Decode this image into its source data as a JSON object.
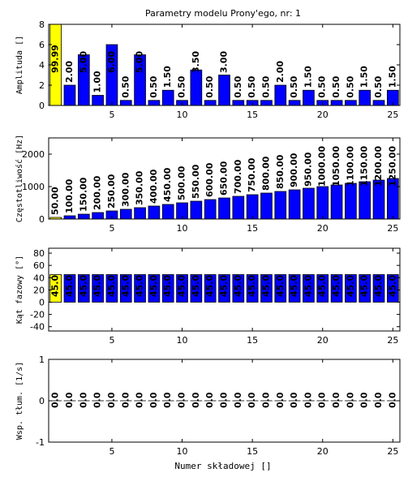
{
  "chart_data": [
    {
      "type": "bar",
      "title": "Parametry modelu Prony'ego, nr: 1",
      "ylabel": "Amplituda []",
      "categories": [
        1,
        2,
        3,
        4,
        5,
        6,
        7,
        8,
        9,
        10,
        11,
        12,
        13,
        14,
        15,
        16,
        17,
        18,
        19,
        20,
        21,
        22,
        23,
        24,
        25
      ],
      "values": [
        99.99,
        2,
        5,
        1,
        6,
        0.5,
        5,
        0.5,
        1.5,
        0.5,
        3.5,
        0.5,
        3,
        0.5,
        0.5,
        0.5,
        2,
        0.5,
        1.5,
        0.5,
        0.5,
        0.5,
        1.5,
        0.5,
        1.5
      ],
      "value_labels": [
        "99.99",
        "2.00",
        "5.00",
        "1.00",
        "6.00",
        "0.50",
        "5.00",
        "0.50",
        "1.50",
        "0.50",
        "3.50",
        "0.50",
        "3.00",
        "0.50",
        "0.50",
        "0.50",
        "2.00",
        "0.50",
        "1.50",
        "0.50",
        "0.50",
        "0.50",
        "1.50",
        "0.50",
        "1.50"
      ],
      "colors": [
        "#ffff00",
        "#0000ff",
        "#0000ff",
        "#0000ff",
        "#0000ff",
        "#0000ff",
        "#0000ff",
        "#0000ff",
        "#0000ff",
        "#0000ff",
        "#0000ff",
        "#0000ff",
        "#0000ff",
        "#0000ff",
        "#0000ff",
        "#0000ff",
        "#0000ff",
        "#0000ff",
        "#0000ff",
        "#0000ff",
        "#0000ff",
        "#0000ff",
        "#0000ff",
        "#0000ff",
        "#0000ff"
      ],
      "xlim": [
        0.5,
        25.5
      ],
      "xticks": [
        5,
        10,
        15,
        20,
        25
      ],
      "ylim": [
        0,
        8
      ],
      "yticks": [
        0,
        2,
        4,
        6,
        8
      ]
    },
    {
      "type": "bar",
      "ylabel": "Częstotliwość [Hz]",
      "categories": [
        1,
        2,
        3,
        4,
        5,
        6,
        7,
        8,
        9,
        10,
        11,
        12,
        13,
        14,
        15,
        16,
        17,
        18,
        19,
        20,
        21,
        22,
        23,
        24,
        25
      ],
      "values": [
        50,
        100,
        150,
        200,
        250,
        300,
        350,
        400,
        450,
        500,
        550,
        600,
        650,
        700,
        750,
        800,
        850,
        900,
        950,
        1000,
        1050,
        1100,
        1150,
        1200,
        1250
      ],
      "value_labels": [
        "50.00",
        "100.00",
        "150.00",
        "200.00",
        "250.00",
        "300.00",
        "350.00",
        "400.00",
        "450.00",
        "500.00",
        "550.00",
        "600.00",
        "650.00",
        "700.00",
        "750.00",
        "800.00",
        "850.00",
        "900.00",
        "950.00",
        "1000.00",
        "1050.00",
        "1100.00",
        "1150.00",
        "1200.00",
        "1250.00"
      ],
      "colors": [
        "#ffff00",
        "#0000ff",
        "#0000ff",
        "#0000ff",
        "#0000ff",
        "#0000ff",
        "#0000ff",
        "#0000ff",
        "#0000ff",
        "#0000ff",
        "#0000ff",
        "#0000ff",
        "#0000ff",
        "#0000ff",
        "#0000ff",
        "#0000ff",
        "#0000ff",
        "#0000ff",
        "#0000ff",
        "#0000ff",
        "#0000ff",
        "#0000ff",
        "#0000ff",
        "#0000ff",
        "#0000ff"
      ],
      "xlim": [
        0.5,
        25.5
      ],
      "xticks": [
        5,
        10,
        15,
        20,
        25
      ],
      "ylim": [
        0,
        2500
      ],
      "yticks": [
        0,
        1000,
        2000
      ]
    },
    {
      "type": "bar",
      "ylabel": "Kąt fazowy [°]",
      "categories": [
        1,
        2,
        3,
        4,
        5,
        6,
        7,
        8,
        9,
        10,
        11,
        12,
        13,
        14,
        15,
        16,
        17,
        18,
        19,
        20,
        21,
        22,
        23,
        24,
        25
      ],
      "values": [
        45,
        45,
        45,
        45,
        45,
        45,
        45,
        45,
        45,
        45,
        45,
        45,
        45,
        45,
        45,
        45,
        45,
        45,
        45,
        45,
        45,
        45,
        45,
        45,
        45
      ],
      "value_labels": [
        "45.0",
        "45.0",
        "45.0",
        "45.0",
        "45.0",
        "45.0",
        "45.0",
        "45.0",
        "45.0",
        "45.0",
        "45.0",
        "45.0",
        "45.0",
        "45.0",
        "45.0",
        "45.0",
        "45.0",
        "45.0",
        "45.0",
        "45.0",
        "45.0",
        "45.0",
        "45.0",
        "45.0",
        "45.0"
      ],
      "colors": [
        "#ffff00",
        "#0000ff",
        "#0000ff",
        "#0000ff",
        "#0000ff",
        "#0000ff",
        "#0000ff",
        "#0000ff",
        "#0000ff",
        "#0000ff",
        "#0000ff",
        "#0000ff",
        "#0000ff",
        "#0000ff",
        "#0000ff",
        "#0000ff",
        "#0000ff",
        "#0000ff",
        "#0000ff",
        "#0000ff",
        "#0000ff",
        "#0000ff",
        "#0000ff",
        "#0000ff",
        "#0000ff"
      ],
      "xlim": [
        0.5,
        25.5
      ],
      "xticks": [
        5,
        10,
        15,
        20,
        25
      ],
      "ylim": [
        -47,
        88
      ],
      "yticks": [
        -40,
        -20,
        0,
        20,
        40,
        60,
        80
      ]
    },
    {
      "type": "bar",
      "ylabel": "Wsp. tłum. [1/s]",
      "xlabel": "Numer składowej []",
      "categories": [
        1,
        2,
        3,
        4,
        5,
        6,
        7,
        8,
        9,
        10,
        11,
        12,
        13,
        14,
        15,
        16,
        17,
        18,
        19,
        20,
        21,
        22,
        23,
        24,
        25
      ],
      "values": [
        0,
        0,
        0,
        0,
        0,
        0,
        0,
        0,
        0,
        0,
        0,
        0,
        0,
        0,
        0,
        0,
        0,
        0,
        0,
        0,
        0,
        0,
        0,
        0,
        0
      ],
      "value_labels": [
        "0.0",
        "0.0",
        "0.0",
        "0.0",
        "0.0",
        "0.0",
        "0.0",
        "0.0",
        "0.0",
        "0.0",
        "0.0",
        "0.0",
        "0.0",
        "0.0",
        "0.0",
        "0.0",
        "0.0",
        "0.0",
        "0.0",
        "0.0",
        "0.0",
        "0.0",
        "0.0",
        "0.0",
        "0.0"
      ],
      "colors": [
        "#ffff00",
        "#0000ff",
        "#0000ff",
        "#0000ff",
        "#0000ff",
        "#0000ff",
        "#0000ff",
        "#0000ff",
        "#0000ff",
        "#0000ff",
        "#0000ff",
        "#0000ff",
        "#0000ff",
        "#0000ff",
        "#0000ff",
        "#0000ff",
        "#0000ff",
        "#0000ff",
        "#0000ff",
        "#0000ff",
        "#0000ff",
        "#0000ff",
        "#0000ff",
        "#0000ff",
        "#0000ff"
      ],
      "xlim": [
        0.5,
        25.5
      ],
      "xticks": [
        5,
        10,
        15,
        20,
        25
      ],
      "ylim": [
        -1,
        1
      ],
      "yticks": [
        -1,
        0,
        1
      ]
    }
  ]
}
